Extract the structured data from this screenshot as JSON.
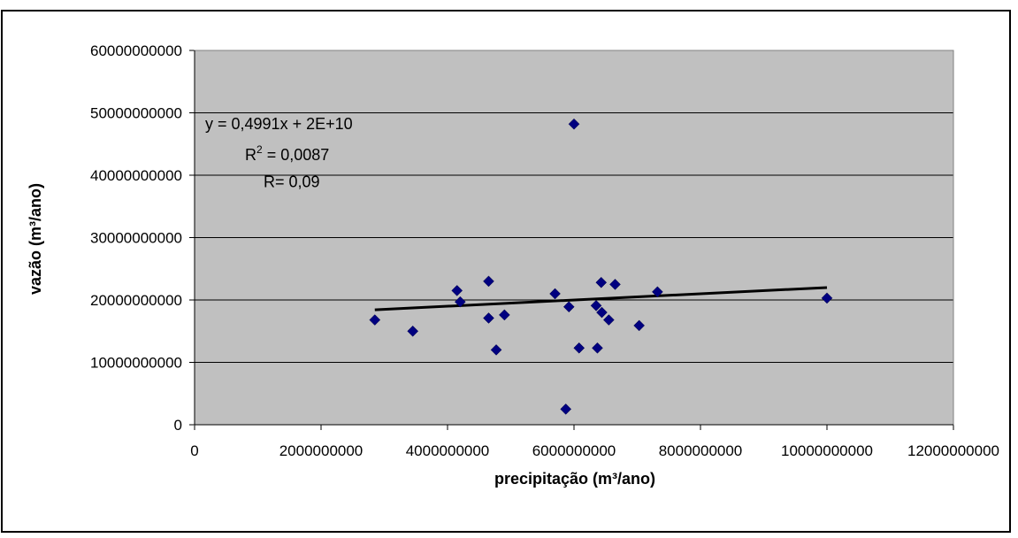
{
  "chart_data": {
    "type": "scatter",
    "xlabel": "precipitação (m³/ano)",
    "ylabel": "vazão (m³/ano)",
    "xlim": [
      0,
      12000000000
    ],
    "ylim": [
      0,
      60000000000
    ],
    "x_ticks": [
      "0",
      "2000000000",
      "4000000000",
      "6000000000",
      "8000000000",
      "10000000000",
      "12000000000"
    ],
    "y_ticks": [
      "0",
      "10000000000",
      "20000000000",
      "30000000000",
      "40000000000",
      "50000000000",
      "60000000000"
    ],
    "grid": "horizontal",
    "plot_background": "#c0c0c0",
    "marker_color": "#000080",
    "marker_shape": "diamond",
    "series": [
      {
        "points": [
          [
            2850000000,
            16800000000
          ],
          [
            3450000000,
            15000000000
          ],
          [
            4150000000,
            21500000000
          ],
          [
            4200000000,
            19700000000
          ],
          [
            4650000000,
            23000000000
          ],
          [
            4650000000,
            17100000000
          ],
          [
            4770000000,
            12000000000
          ],
          [
            4900000000,
            17600000000
          ],
          [
            5700000000,
            21000000000
          ],
          [
            5870000000,
            2500000000
          ],
          [
            5920000000,
            18900000000
          ],
          [
            6000000000,
            48200000000
          ],
          [
            6080000000,
            12300000000
          ],
          [
            6350000000,
            19100000000
          ],
          [
            6370000000,
            12300000000
          ],
          [
            6430000000,
            22800000000
          ],
          [
            6440000000,
            18000000000
          ],
          [
            6550000000,
            16800000000
          ],
          [
            6650000000,
            22500000000
          ],
          [
            7030000000,
            15900000000
          ],
          [
            7320000000,
            21300000000
          ],
          [
            10000000000,
            20300000000
          ]
        ]
      }
    ],
    "trendline": {
      "type": "linear",
      "slope": 0.4991,
      "intercept": 17000000000,
      "x_range": [
        2850000000,
        10000000000
      ]
    },
    "annotations": {
      "equation": "y = 0,4991x + 2E+10",
      "r2_label": "R",
      "r2_exp": "2",
      "r2_value": " = 0,0087",
      "r": "R= 0,09"
    }
  }
}
